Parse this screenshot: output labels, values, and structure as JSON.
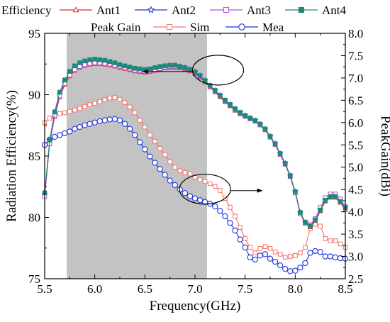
{
  "chart_data": {
    "type": "line",
    "x_axis": {
      "label": "Frequency(GHz)",
      "range": [
        5.5,
        8.5
      ],
      "ticks": [
        5.5,
        6.0,
        6.5,
        7.0,
        7.5,
        8.0,
        8.5
      ],
      "tick_labels": [
        "5.5",
        "6.0",
        "6.5",
        "7.0",
        "7.5",
        "8.0",
        "8.5"
      ]
    },
    "y_left": {
      "label": "Radiation Efficiency(%)",
      "range": [
        75,
        95
      ],
      "ticks": [
        75,
        80,
        85,
        90,
        95
      ],
      "tick_labels": [
        "75",
        "80",
        "85",
        "90",
        "95"
      ]
    },
    "y_right": {
      "label": "PeakGain(dBi)",
      "range": [
        2.5,
        8.0
      ],
      "ticks": [
        2.5,
        3.0,
        3.5,
        4.0,
        4.5,
        5.0,
        5.5,
        6.0,
        6.5,
        7.0,
        7.5,
        8.0
      ],
      "tick_labels": [
        "2.5",
        "3.0",
        "3.5",
        "4.0",
        "4.5",
        "5.0",
        "5.5",
        "6.0",
        "6.5",
        "7.0",
        "7.5",
        "8.0"
      ]
    },
    "shaded_band": {
      "x": [
        5.72,
        7.12
      ],
      "color": "#c3c3c3"
    },
    "grid": false,
    "legend": {
      "placement": "top",
      "row1_title": "Efficiency",
      "row2_title": "Peak Gain"
    },
    "colors": {
      "ant1": "#e8262a",
      "ant2": "#2634c9",
      "ant3": "#b34fd9",
      "ant4": "#1d8a78",
      "sim": "#f2756b",
      "mea": "#1f33e0"
    },
    "efficiency_series": [
      {
        "name": "Ant1",
        "color_key": "ant1",
        "marker": "triangle",
        "axis": "left",
        "x": [
          5.5,
          5.55,
          5.6,
          5.65,
          5.7,
          5.75,
          5.8,
          5.85,
          5.9,
          5.95,
          6.0,
          6.05,
          6.1,
          6.15,
          6.2,
          6.25,
          6.3,
          6.35,
          6.4,
          6.45,
          6.5,
          6.55,
          6.6,
          6.65,
          6.7,
          6.75,
          6.8,
          6.85,
          6.9,
          6.95,
          7.0,
          7.05,
          7.1,
          7.15,
          7.2,
          7.25,
          7.3,
          7.35,
          7.4,
          7.45,
          7.5,
          7.55,
          7.6,
          7.65,
          7.7,
          7.75,
          7.8,
          7.85,
          7.9,
          7.95,
          8.0,
          8.05,
          8.1,
          8.15,
          8.2,
          8.25,
          8.3,
          8.35,
          8.4,
          8.45,
          8.5
        ],
        "y": [
          81.8,
          86.0,
          88.2,
          89.8,
          90.8,
          91.5,
          91.95,
          92.2,
          92.35,
          92.45,
          92.5,
          92.5,
          92.45,
          92.4,
          92.3,
          92.2,
          92.1,
          92.0,
          91.9,
          91.85,
          91.8,
          91.85,
          91.95,
          92.05,
          92.15,
          92.2,
          92.2,
          92.15,
          92.05,
          91.9,
          91.7,
          91.4,
          91.0,
          90.6,
          90.2,
          89.8,
          89.4,
          89.05,
          88.7,
          88.4,
          88.2,
          88.0,
          87.8,
          87.5,
          87.1,
          86.5,
          85.9,
          85.1,
          84.3,
          83.3,
          82.0,
          80.3,
          79.5,
          79.2,
          79.7,
          80.5,
          81.3,
          81.6,
          81.6,
          81.2,
          80.6
        ]
      },
      {
        "name": "Ant2",
        "color_key": "ant2",
        "marker": "star",
        "axis": "left",
        "x": [
          5.5,
          5.55,
          5.6,
          5.65,
          5.7,
          5.75,
          5.8,
          5.85,
          5.9,
          5.95,
          6.0,
          6.05,
          6.1,
          6.15,
          6.2,
          6.25,
          6.3,
          6.35,
          6.4,
          6.45,
          6.5,
          6.55,
          6.6,
          6.65,
          6.7,
          6.75,
          6.8,
          6.85,
          6.9,
          6.95,
          7.0,
          7.05,
          7.1,
          7.15,
          7.2,
          7.25,
          7.3,
          7.35,
          7.4,
          7.45,
          7.5,
          7.55,
          7.6,
          7.65,
          7.7,
          7.75,
          7.8,
          7.85,
          7.9,
          7.95,
          8.0,
          8.05,
          8.1,
          8.15,
          8.2,
          8.25,
          8.3,
          8.35,
          8.4,
          8.45,
          8.5
        ],
        "y": [
          81.9,
          86.2,
          88.4,
          90.0,
          91.0,
          91.7,
          92.15,
          92.4,
          92.55,
          92.65,
          92.7,
          92.7,
          92.65,
          92.55,
          92.45,
          92.35,
          92.25,
          92.15,
          92.05,
          92.0,
          91.95,
          92.0,
          92.1,
          92.2,
          92.3,
          92.35,
          92.35,
          92.3,
          92.2,
          92.05,
          91.85,
          91.55,
          91.15,
          90.75,
          90.35,
          89.95,
          89.55,
          89.2,
          88.85,
          88.55,
          88.3,
          88.1,
          87.9,
          87.6,
          87.2,
          86.6,
          86.0,
          85.2,
          84.4,
          83.4,
          82.1,
          80.4,
          79.6,
          79.3,
          79.8,
          80.6,
          81.4,
          81.7,
          81.7,
          81.3,
          80.8
        ]
      },
      {
        "name": "Ant3",
        "color_key": "ant3",
        "marker": "square",
        "axis": "left",
        "x": [
          5.5,
          5.55,
          5.6,
          5.65,
          5.7,
          5.75,
          5.8,
          5.85,
          5.9,
          5.95,
          6.0,
          6.05,
          6.1,
          6.15,
          6.2,
          6.25,
          6.3,
          6.35,
          6.4,
          6.45,
          6.5,
          6.55,
          6.6,
          6.65,
          6.7,
          6.75,
          6.8,
          6.85,
          6.9,
          6.95,
          7.0,
          7.05,
          7.1,
          7.15,
          7.2,
          7.25,
          7.3,
          7.35,
          7.4,
          7.45,
          7.5,
          7.55,
          7.6,
          7.65,
          7.7,
          7.75,
          7.8,
          7.85,
          7.9,
          7.95,
          8.0,
          8.05,
          8.1,
          8.15,
          8.2,
          8.25,
          8.3,
          8.35,
          8.4,
          8.45,
          8.5
        ],
        "y": [
          81.7,
          86.0,
          88.3,
          89.9,
          90.9,
          91.6,
          92.05,
          92.3,
          92.45,
          92.55,
          92.6,
          92.6,
          92.55,
          92.5,
          92.4,
          92.3,
          92.2,
          92.1,
          92.0,
          91.95,
          91.9,
          91.95,
          92.05,
          92.15,
          92.25,
          92.3,
          92.3,
          92.25,
          92.15,
          92.0,
          91.8,
          91.5,
          91.1,
          90.7,
          90.3,
          89.9,
          89.5,
          89.15,
          88.8,
          88.5,
          88.25,
          88.05,
          87.85,
          87.55,
          87.15,
          86.55,
          85.95,
          85.15,
          84.35,
          83.35,
          82.0,
          80.3,
          79.6,
          79.4,
          79.9,
          80.8,
          81.6,
          81.9,
          81.9,
          81.5,
          80.9
        ]
      },
      {
        "name": "Ant4",
        "color_key": "ant4",
        "marker": "square-filled",
        "axis": "left",
        "x": [
          5.5,
          5.55,
          5.6,
          5.65,
          5.7,
          5.75,
          5.8,
          5.85,
          5.9,
          5.95,
          6.0,
          6.05,
          6.1,
          6.15,
          6.2,
          6.25,
          6.3,
          6.35,
          6.4,
          6.45,
          6.5,
          6.55,
          6.6,
          6.65,
          6.7,
          6.75,
          6.8,
          6.85,
          6.9,
          6.95,
          7.0,
          7.05,
          7.1,
          7.15,
          7.2,
          7.25,
          7.3,
          7.35,
          7.4,
          7.45,
          7.5,
          7.55,
          7.6,
          7.65,
          7.7,
          7.75,
          7.8,
          7.85,
          7.9,
          7.95,
          8.0,
          8.05,
          8.1,
          8.15,
          8.2,
          8.25,
          8.3,
          8.35,
          8.4,
          8.45,
          8.5
        ],
        "y": [
          82.0,
          86.3,
          88.6,
          90.2,
          91.2,
          91.9,
          92.35,
          92.6,
          92.75,
          92.85,
          92.9,
          92.85,
          92.8,
          92.7,
          92.6,
          92.45,
          92.35,
          92.25,
          92.15,
          92.1,
          92.05,
          92.1,
          92.2,
          92.3,
          92.35,
          92.4,
          92.4,
          92.3,
          92.2,
          92.05,
          91.85,
          91.55,
          91.15,
          90.75,
          90.35,
          89.95,
          89.55,
          89.2,
          88.85,
          88.55,
          88.3,
          88.1,
          87.9,
          87.6,
          87.2,
          86.6,
          86.0,
          85.2,
          84.4,
          83.4,
          82.1,
          80.4,
          79.6,
          79.3,
          79.8,
          80.6,
          81.4,
          81.7,
          81.7,
          81.3,
          80.8
        ]
      }
    ],
    "gain_series": [
      {
        "name": "Sim",
        "color_key": "sim",
        "marker": "square",
        "axis": "right",
        "x": [
          5.5,
          5.55,
          5.6,
          5.65,
          5.7,
          5.75,
          5.8,
          5.85,
          5.9,
          5.95,
          6.0,
          6.05,
          6.1,
          6.15,
          6.2,
          6.25,
          6.3,
          6.35,
          6.4,
          6.45,
          6.5,
          6.55,
          6.6,
          6.65,
          6.7,
          6.75,
          6.8,
          6.85,
          6.9,
          6.95,
          7.0,
          7.05,
          7.1,
          7.15,
          7.2,
          7.25,
          7.3,
          7.35,
          7.4,
          7.45,
          7.5,
          7.55,
          7.6,
          7.65,
          7.7,
          7.75,
          7.8,
          7.85,
          7.9,
          7.95,
          8.0,
          8.05,
          8.1,
          8.15,
          8.2,
          8.25,
          8.3,
          8.35,
          8.4,
          8.45,
          8.5
        ],
        "y": [
          6.0,
          6.1,
          6.15,
          6.2,
          6.22,
          6.25,
          6.28,
          6.32,
          6.36,
          6.4,
          6.43,
          6.47,
          6.51,
          6.55,
          6.56,
          6.52,
          6.45,
          6.35,
          6.22,
          6.05,
          5.9,
          5.72,
          5.58,
          5.42,
          5.28,
          5.12,
          5.0,
          4.92,
          4.88,
          4.85,
          4.78,
          4.72,
          4.68,
          4.63,
          4.57,
          4.48,
          4.3,
          4.1,
          3.9,
          3.65,
          3.4,
          3.2,
          3.08,
          3.18,
          3.22,
          3.18,
          3.1,
          3.05,
          2.98,
          3.0,
          3.02,
          3.08,
          3.2,
          3.62,
          3.72,
          3.68,
          3.4,
          3.35,
          3.35,
          3.28,
          3.2
        ]
      },
      {
        "name": "Mea",
        "color_key": "mea",
        "marker": "circle",
        "axis": "right",
        "x": [
          5.5,
          5.55,
          5.6,
          5.65,
          5.7,
          5.75,
          5.8,
          5.85,
          5.9,
          5.95,
          6.0,
          6.05,
          6.1,
          6.15,
          6.2,
          6.25,
          6.3,
          6.35,
          6.4,
          6.45,
          6.5,
          6.55,
          6.6,
          6.65,
          6.7,
          6.75,
          6.8,
          6.85,
          6.9,
          6.95,
          7.0,
          7.05,
          7.1,
          7.15,
          7.2,
          7.25,
          7.3,
          7.35,
          7.4,
          7.45,
          7.5,
          7.55,
          7.6,
          7.65,
          7.7,
          7.75,
          7.8,
          7.85,
          7.9,
          7.95,
          8.0,
          8.05,
          8.1,
          8.15,
          8.2,
          8.25,
          8.3,
          8.35,
          8.4,
          8.45,
          8.5
        ],
        "y": [
          5.5,
          5.62,
          5.68,
          5.72,
          5.76,
          5.8,
          5.86,
          5.9,
          5.94,
          5.97,
          6.0,
          6.03,
          6.05,
          6.07,
          6.08,
          6.05,
          5.97,
          5.86,
          5.72,
          5.56,
          5.4,
          5.24,
          5.1,
          4.96,
          4.83,
          4.7,
          4.6,
          4.5,
          4.42,
          4.35,
          4.3,
          4.26,
          4.22,
          4.18,
          4.12,
          4.02,
          3.9,
          3.75,
          3.58,
          3.38,
          3.2,
          2.98,
          2.93,
          3.02,
          3.05,
          2.95,
          2.88,
          2.8,
          2.72,
          2.67,
          2.68,
          2.75,
          2.85,
          3.08,
          3.12,
          3.1,
          3.0,
          3.0,
          2.98,
          2.96,
          2.95
        ]
      }
    ],
    "annotations": [
      {
        "shape": "ellipse",
        "center_x": 7.23,
        "center_y_left": 92.0,
        "arrow_direction": "left",
        "arrow_to_x": 6.48
      },
      {
        "shape": "ellipse",
        "center_x": 7.1,
        "center_y_left": 82.3,
        "arrow_direction": "right",
        "arrow_to_x": 7.67
      }
    ]
  }
}
